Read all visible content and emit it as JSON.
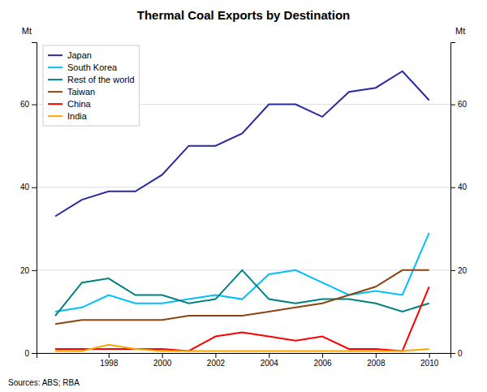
{
  "chart_data": {
    "type": "line",
    "title": "Thermal Coal Exports by Destination",
    "ylabel": "Mt",
    "y2label": "Mt",
    "source": "Sources: ABS; RBA",
    "x": [
      1996,
      1997,
      1998,
      1999,
      2000,
      2001,
      2002,
      2003,
      2004,
      2005,
      2006,
      2007,
      2008,
      2009,
      2010
    ],
    "series": [
      {
        "name": "Japan",
        "color": "#2929A3",
        "values": [
          33,
          37,
          39,
          39,
          43,
          50,
          50,
          53,
          60,
          60,
          57,
          63,
          64,
          68,
          61
        ]
      },
      {
        "name": "South Korea",
        "color": "#00BFFF",
        "values": [
          10,
          11,
          14,
          12,
          12,
          13,
          14,
          13,
          19,
          20,
          17,
          14,
          15,
          14,
          29
        ]
      },
      {
        "name": "Rest of the world",
        "color": "#008080",
        "values": [
          9,
          17,
          18,
          14,
          14,
          12,
          13,
          20,
          13,
          12,
          13,
          13,
          12,
          10,
          12
        ]
      },
      {
        "name": "Taiwan",
        "color": "#8B4513",
        "values": [
          7,
          8,
          8,
          8,
          8,
          9,
          9,
          9,
          10,
          11,
          12,
          14,
          16,
          20,
          20
        ]
      },
      {
        "name": "China",
        "color": "#FF0000",
        "values": [
          1,
          1,
          1,
          1,
          1,
          0.5,
          4,
          5,
          4,
          3,
          4,
          1,
          1,
          0.5,
          16
        ]
      },
      {
        "name": "India",
        "color": "#FFA500",
        "values": [
          0.5,
          0.5,
          2,
          1,
          0.5,
          0.5,
          0.5,
          0.5,
          0.5,
          0.5,
          0.5,
          0.5,
          0.5,
          0.5,
          1
        ]
      }
    ],
    "xlim": [
      1995.3,
      2010.8
    ],
    "xticks": [
      1998,
      2000,
      2002,
      2004,
      2006,
      2008,
      2010
    ],
    "ylim": [
      0,
      75
    ],
    "yticks": [
      0,
      20,
      40,
      60
    ],
    "y2lim": [
      0,
      75
    ],
    "y2ticks": [
      0,
      20,
      40,
      60
    ],
    "grid": true,
    "legend": "upper left"
  }
}
